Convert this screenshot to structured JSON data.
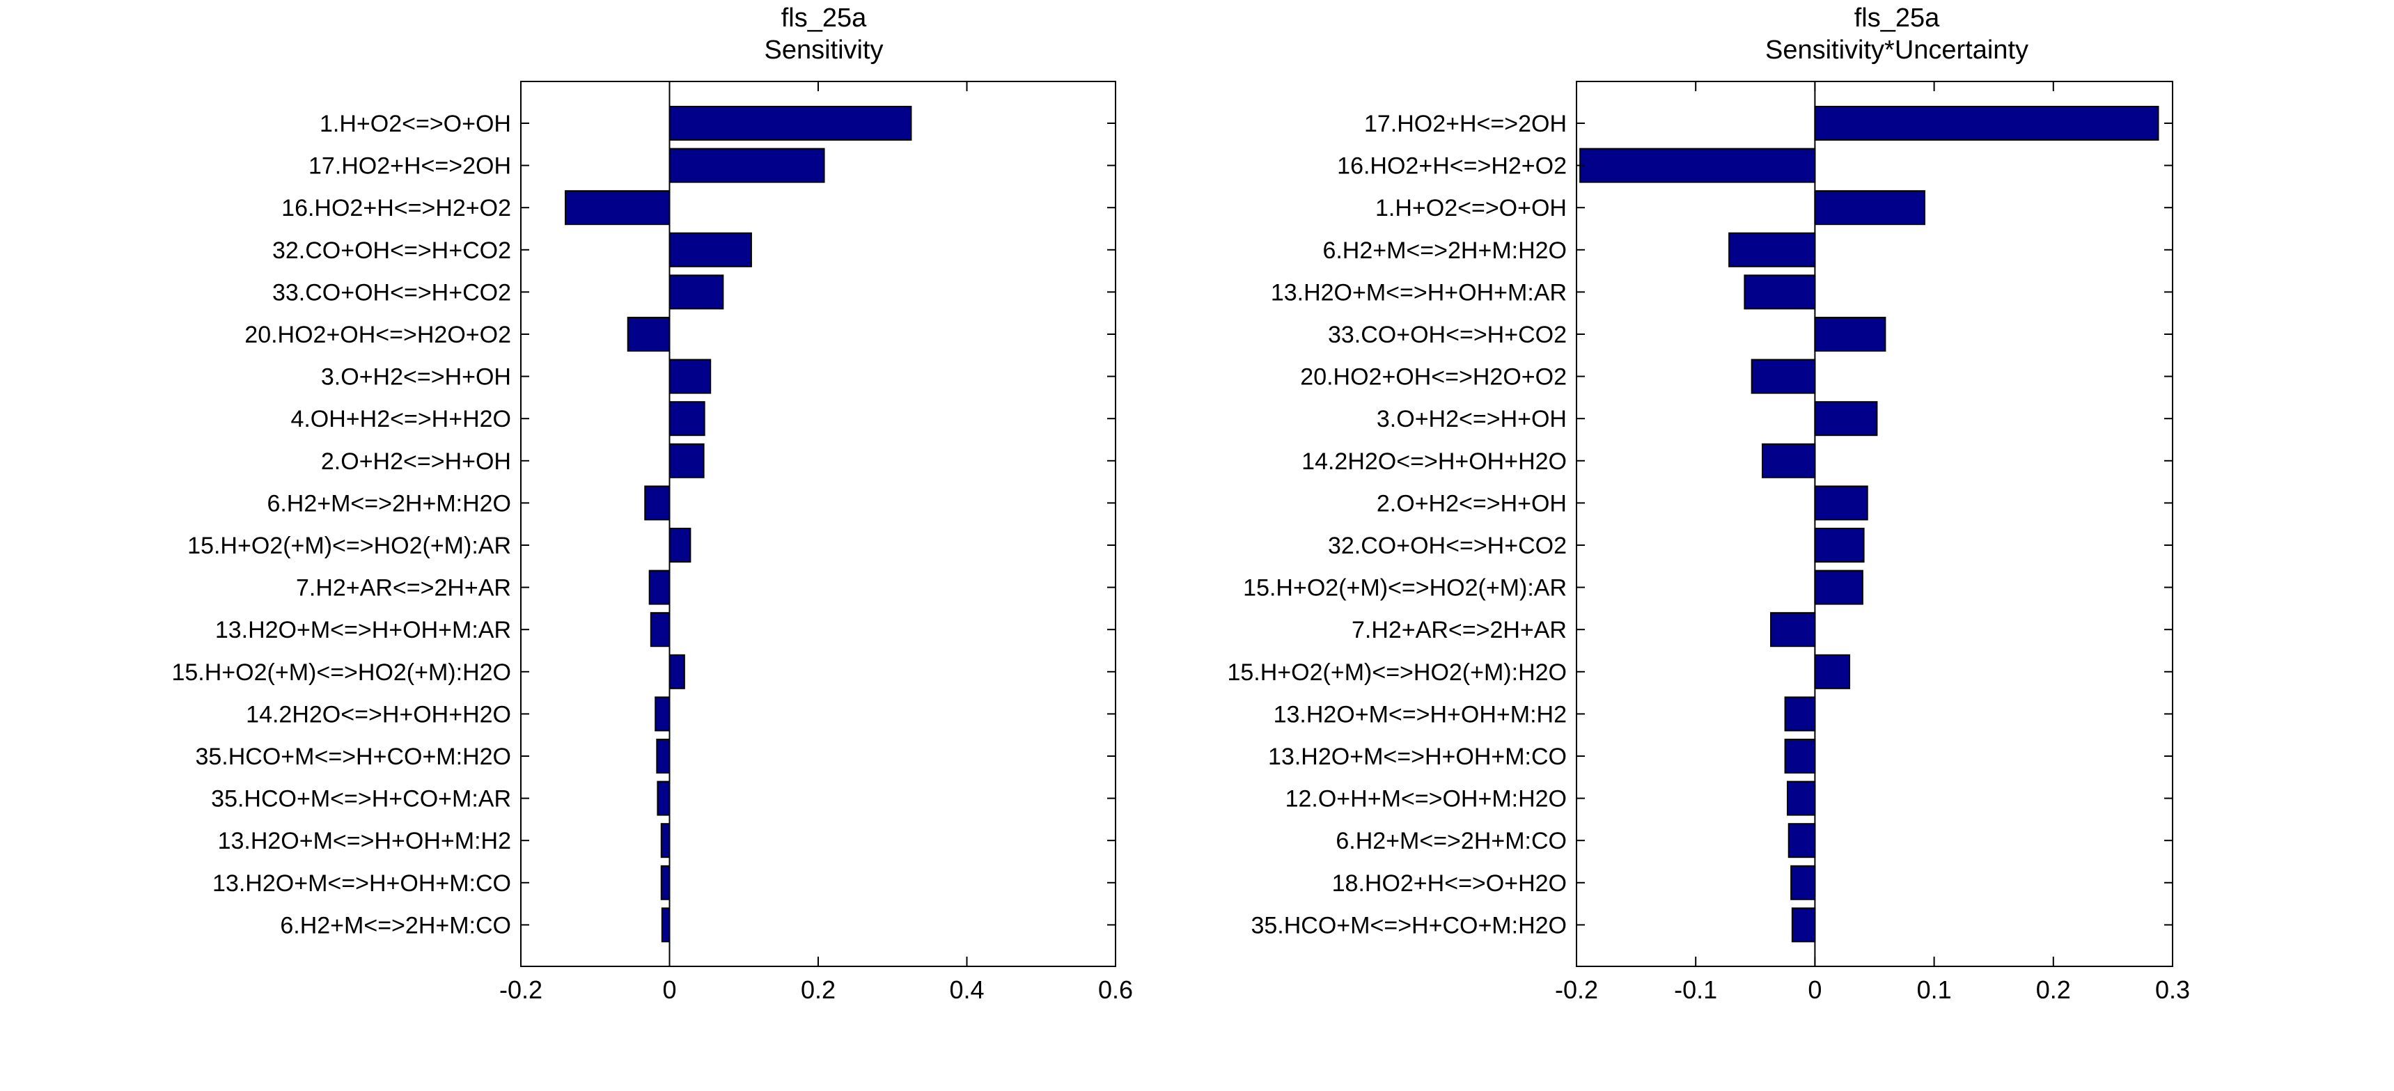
{
  "chart_data": [
    {
      "type": "bar",
      "orientation": "horizontal",
      "title": "fls_25a",
      "subtitle": "Sensitivity",
      "xlabel": "",
      "ylabel": "",
      "xlim": [
        -0.2,
        0.6
      ],
      "xticks": [
        -0.2,
        0,
        0.2,
        0.4,
        0.6
      ],
      "xtick_labels": [
        "-0.2",
        "0",
        "0.2",
        "0.4",
        "0.6"
      ],
      "grid": false,
      "bar_color": "#00008B",
      "categories": [
        "1.H+O2<=>O+OH",
        "17.HO2+H<=>2OH",
        "16.HO2+H<=>H2+O2",
        "32.CO+OH<=>H+CO2",
        "33.CO+OH<=>H+CO2",
        "20.HO2+OH<=>H2O+O2",
        "3.O+H2<=>H+OH",
        "4.OH+H2<=>H+H2O",
        "2.O+H2<=>H+OH",
        "6.H2+M<=>2H+M:H2O",
        "15.H+O2(+M)<=>HO2(+M):AR",
        "7.H2+AR<=>2H+AR",
        "13.H2O+M<=>H+OH+M:AR",
        "15.H+O2(+M)<=>HO2(+M):H2O",
        "14.2H2O<=>H+OH+H2O",
        "35.HCO+M<=>H+CO+M:H2O",
        "35.HCO+M<=>H+CO+M:AR",
        "13.H2O+M<=>H+OH+M:H2",
        "13.H2O+M<=>H+OH+M:CO",
        "6.H2+M<=>2H+M:CO"
      ],
      "values": [
        0.325,
        0.208,
        -0.14,
        0.11,
        0.072,
        -0.056,
        0.055,
        0.047,
        0.046,
        -0.033,
        0.028,
        -0.027,
        -0.025,
        0.02,
        -0.019,
        -0.017,
        -0.016,
        -0.011,
        -0.011,
        -0.01
      ]
    },
    {
      "type": "bar",
      "orientation": "horizontal",
      "title": "fls_25a",
      "subtitle": "Sensitivity*Uncertainty",
      "xlabel": "",
      "ylabel": "",
      "xlim": [
        -0.2,
        0.3
      ],
      "xticks": [
        -0.2,
        -0.1,
        0,
        0.1,
        0.2,
        0.3
      ],
      "xtick_labels": [
        "-0.2",
        "-0.1",
        "0",
        "0.1",
        "0.2",
        "0.3"
      ],
      "grid": false,
      "bar_color": "#00008B",
      "categories": [
        "17.HO2+H<=>2OH",
        "16.HO2+H<=>H2+O2",
        "1.H+O2<=>O+OH",
        "6.H2+M<=>2H+M:H2O",
        "13.H2O+M<=>H+OH+M:AR",
        "33.CO+OH<=>H+CO2",
        "20.HO2+OH<=>H2O+O2",
        "3.O+H2<=>H+OH",
        "14.2H2O<=>H+OH+H2O",
        "2.O+H2<=>H+OH",
        "32.CO+OH<=>H+CO2",
        "15.H+O2(+M)<=>HO2(+M):AR",
        "7.H2+AR<=>2H+AR",
        "15.H+O2(+M)<=>HO2(+M):H2O",
        "13.H2O+M<=>H+OH+M:H2",
        "13.H2O+M<=>H+OH+M:CO",
        "12.O+H+M<=>OH+M:H2O",
        "6.H2+M<=>2H+M:CO",
        "18.HO2+H<=>O+H2O",
        "35.HCO+M<=>H+CO+M:H2O"
      ],
      "values": [
        0.288,
        -0.197,
        0.092,
        -0.072,
        -0.059,
        0.059,
        -0.053,
        0.052,
        -0.044,
        0.044,
        0.041,
        0.04,
        -0.037,
        0.029,
        -0.025,
        -0.025,
        -0.023,
        -0.022,
        -0.02,
        -0.019
      ]
    }
  ]
}
